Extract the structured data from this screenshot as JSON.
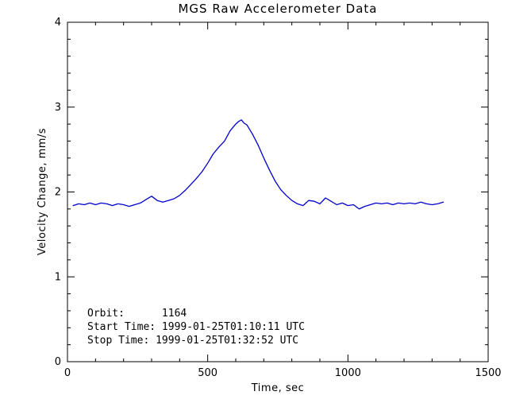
{
  "colors": {
    "background": "#ffffff",
    "axis": "#000000",
    "text": "#000000",
    "line": "#0000cd"
  },
  "chart_data": {
    "type": "line",
    "title": "MGS Raw Accelerometer Data",
    "xlabel": "Time, sec",
    "ylabel": "Velocity Change, mm/s",
    "xlim": [
      0,
      1500
    ],
    "ylim": [
      0,
      4
    ],
    "xticks": [
      0,
      500,
      1000,
      1500
    ],
    "yticks": [
      0,
      1,
      2,
      3,
      4
    ],
    "x_minor_step": 100,
    "y_minor_step": 0.2,
    "grid": false,
    "legend": "none",
    "annotations": [
      "Orbit:      1164",
      "Start Time: 1999-01-25T01:10:11 UTC",
      "Stop Time: 1999-01-25T01:32:52 UTC"
    ],
    "series": [
      {
        "name": "velocity-change",
        "color": "#0000cd",
        "x": [
          20,
          40,
          60,
          80,
          100,
          120,
          140,
          160,
          180,
          200,
          220,
          240,
          260,
          280,
          300,
          320,
          340,
          360,
          380,
          400,
          420,
          440,
          460,
          480,
          500,
          520,
          540,
          560,
          580,
          600,
          610,
          620,
          630,
          640,
          660,
          680,
          700,
          720,
          740,
          760,
          780,
          800,
          820,
          840,
          860,
          880,
          900,
          920,
          940,
          960,
          980,
          1000,
          1020,
          1040,
          1060,
          1080,
          1100,
          1120,
          1140,
          1160,
          1180,
          1200,
          1220,
          1240,
          1260,
          1280,
          1300,
          1320,
          1340
        ],
        "y": [
          1.84,
          1.86,
          1.85,
          1.87,
          1.85,
          1.87,
          1.86,
          1.84,
          1.86,
          1.85,
          1.83,
          1.85,
          1.87,
          1.91,
          1.95,
          1.9,
          1.88,
          1.9,
          1.92,
          1.96,
          2.02,
          2.09,
          2.16,
          2.24,
          2.34,
          2.45,
          2.53,
          2.6,
          2.72,
          2.8,
          2.83,
          2.85,
          2.81,
          2.79,
          2.68,
          2.55,
          2.4,
          2.26,
          2.13,
          2.03,
          1.96,
          1.9,
          1.86,
          1.84,
          1.9,
          1.89,
          1.86,
          1.93,
          1.89,
          1.85,
          1.87,
          1.84,
          1.85,
          1.8,
          1.83,
          1.85,
          1.87,
          1.86,
          1.87,
          1.85,
          1.87,
          1.86,
          1.87,
          1.86,
          1.88,
          1.86,
          1.85,
          1.86,
          1.88
        ]
      }
    ]
  }
}
